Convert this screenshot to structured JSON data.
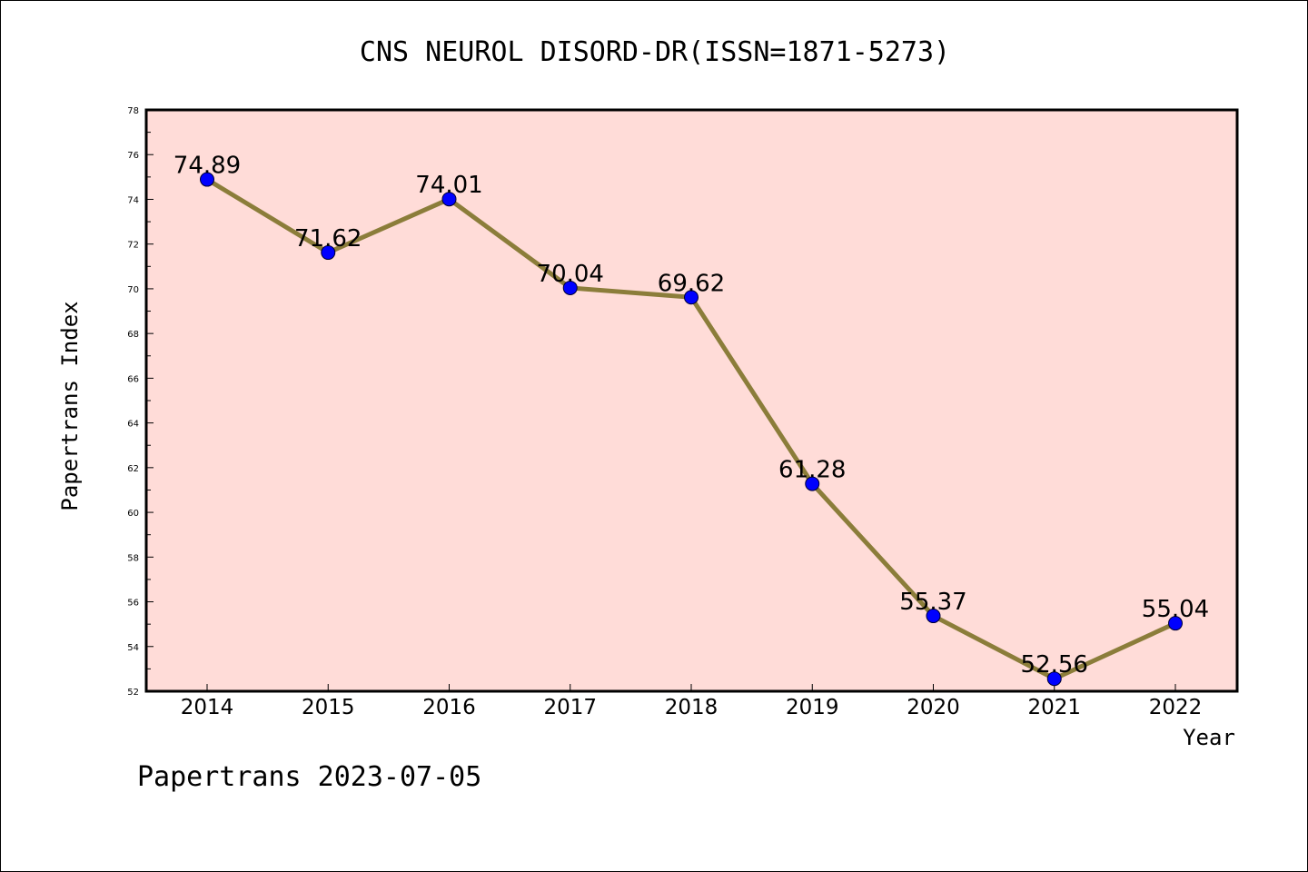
{
  "chart_data": {
    "type": "line",
    "title": "CNS NEUROL DISORD-DR(ISSN=1871-5273)",
    "xlabel": "Year",
    "ylabel": "Papertrans Index",
    "categories": [
      "2014",
      "2015",
      "2016",
      "2017",
      "2018",
      "2019",
      "2020",
      "2021",
      "2022"
    ],
    "series": [
      {
        "values": [
          74.89,
          71.62,
          74.01,
          70.04,
          69.62,
          61.28,
          55.37,
          52.56,
          55.04
        ],
        "labels": [
          "74.89",
          "71.62",
          "74.01",
          "70.04",
          "69.62",
          "61.28",
          "55.37",
          "52.56",
          "55.04"
        ]
      }
    ],
    "ylim": [
      52,
      78
    ],
    "yticks": [
      52,
      54,
      56,
      58,
      60,
      62,
      64,
      66,
      68,
      70,
      72,
      74,
      76,
      78
    ],
    "grid": false,
    "colors": {
      "plot_background": "#ffdcd8",
      "line": "#8b7d3a",
      "marker": "#0000ff"
    }
  },
  "footer": {
    "text": "Papertrans 2023-07-05"
  }
}
